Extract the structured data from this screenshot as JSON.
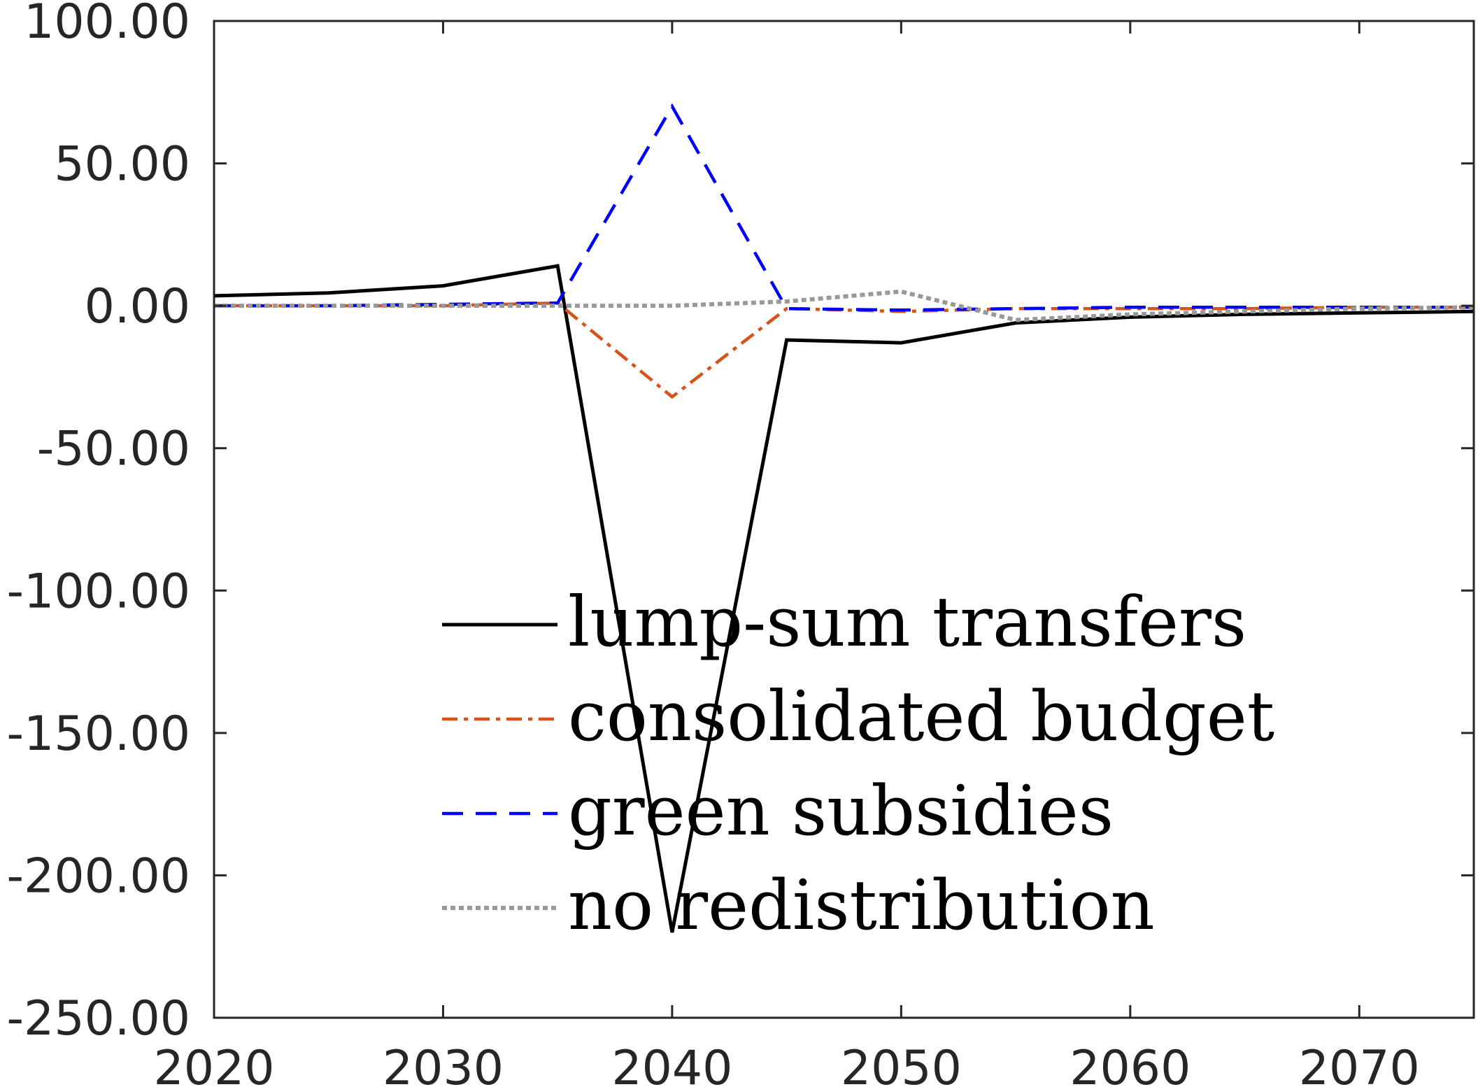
{
  "chart_data": {
    "type": "line",
    "title": "",
    "xlabel": "",
    "ylabel": "",
    "xlim": [
      2020,
      2075
    ],
    "ylim": [
      -250,
      100
    ],
    "x_ticks": [
      2020,
      2030,
      2040,
      2050,
      2060,
      2070
    ],
    "x_tick_labels": [
      "2020",
      "2030",
      "2040",
      "2050",
      "2060",
      "2070"
    ],
    "y_ticks": [
      100,
      50,
      0,
      -50,
      -100,
      -150,
      -200,
      -250
    ],
    "y_tick_labels": [
      "100.00",
      "50.00",
      "0.00",
      "-50.00",
      "-100.00",
      "-150.00",
      "-200.00",
      "-250.00"
    ],
    "grid": false,
    "legend_position": "lower-center",
    "x": [
      2020,
      2025,
      2030,
      2035,
      2040,
      2045,
      2050,
      2055,
      2060,
      2065,
      2070,
      2075
    ],
    "series": [
      {
        "name": "lump-sum transfers",
        "color": "#000000",
        "style": "solid",
        "values": [
          3.5,
          4.5,
          7,
          14,
          -220,
          -12,
          -13,
          -6,
          -4,
          -3,
          -2.5,
          -2
        ]
      },
      {
        "name": "consolidated budget",
        "color": "#D95319",
        "style": "dashdot",
        "values": [
          0,
          0,
          0,
          1,
          -32,
          -1,
          -2,
          -1,
          -1,
          -1,
          -0.5,
          -0.5
        ]
      },
      {
        "name": "green subsidies",
        "color": "#0000FF",
        "style": "dashed",
        "values": [
          0,
          0,
          0.5,
          1,
          70,
          -1,
          -1.5,
          -1,
          -0.5,
          -0.5,
          -0.5,
          -0.5
        ]
      },
      {
        "name": "no redistribution",
        "color": "#999999",
        "style": "dotted",
        "values": [
          0,
          0,
          0,
          0,
          0,
          1.5,
          5,
          -5,
          -3,
          -2,
          -1,
          -0.5
        ]
      }
    ]
  }
}
